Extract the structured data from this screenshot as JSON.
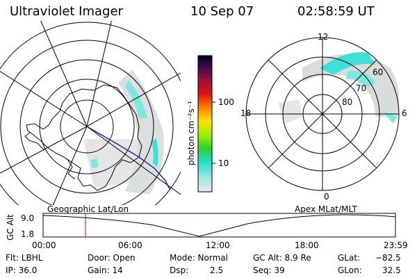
{
  "header": {
    "instrument": "Ultraviolet Imager",
    "date": "10 Sep 07",
    "time": "02:58:59 UT"
  },
  "colorbar": {
    "unit_label": "photon cm⁻²s⁻¹",
    "ticks": [
      "100",
      "10"
    ]
  },
  "right_map": {
    "mlt_labels": [
      "12",
      "18",
      "6",
      "0"
    ],
    "mlat_labels": [
      "60",
      "70",
      "80"
    ]
  },
  "map_titles": {
    "left": "Geographic Lat/Lon",
    "right": "Apex MLat/MLT"
  },
  "altitude_plot": {
    "ylabel": "GC Alt",
    "y_ticks": [
      "9.0",
      "1.8"
    ],
    "x_ticks": [
      "00:00",
      "06:00",
      "12:00",
      "18:00",
      "23:59"
    ],
    "marker_color": "#cc0000",
    "orbit_color": "#000000"
  },
  "status": {
    "filter": "Flt: LBHL",
    "ip": "IP: 36.0",
    "door": "Door: Open",
    "gain": "Gain: 14",
    "mode": "Mode: Normal",
    "dsp_label": "Dsp:",
    "dsp_value": "2.5",
    "gc_alt": "GC Alt: 8.9 Re",
    "seq": "Seq: 39",
    "glat_label": "GLat:",
    "glat_value": "−82.5",
    "glon_label": "GLon:",
    "glon_value": "32.5"
  },
  "colors": {
    "aurora_low": "#d8dcdc",
    "aurora_high": "#40e0d8",
    "track": "#1a2a9a"
  }
}
